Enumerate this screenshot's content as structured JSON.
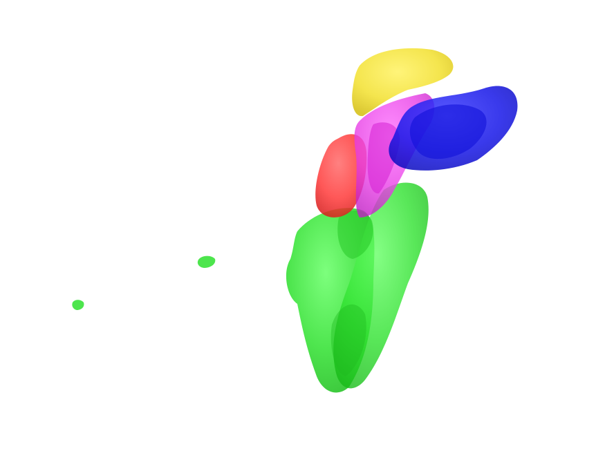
{
  "scene": {
    "background": "#ffffff",
    "structures": [
      {
        "id": "yellow",
        "color": "#ffff00",
        "opacity": 0.75
      },
      {
        "id": "magenta",
        "color": "#ff00ff",
        "opacity": 0.7
      },
      {
        "id": "blue",
        "color": "#0000ff",
        "opacity": 0.75
      },
      {
        "id": "red",
        "color": "#ff0000",
        "opacity": 0.75
      },
      {
        "id": "green",
        "color": "#00ff00",
        "opacity": 0.7
      }
    ]
  }
}
